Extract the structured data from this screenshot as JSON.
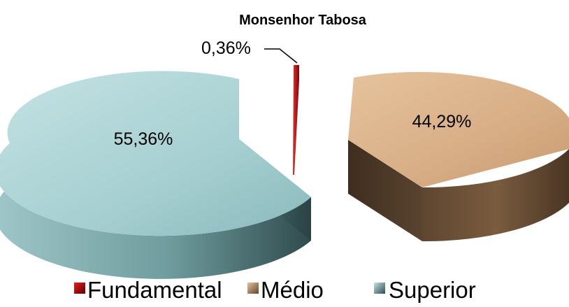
{
  "chart_data": {
    "type": "pie",
    "title": "Monsenhor Tabosa",
    "categories": [
      "Fundamental",
      "Médio",
      "Superior"
    ],
    "values": [
      0.36,
      44.29,
      55.36
    ],
    "value_labels": [
      "0,36%",
      "44,29%",
      "55,36%"
    ],
    "unit": "%",
    "legend_position": "bottom",
    "colors": {
      "Fundamental": "#c01010",
      "Médio": "#d9b08a",
      "Superior": "#a8d2d4"
    },
    "exploded": true,
    "style_3d": true
  }
}
